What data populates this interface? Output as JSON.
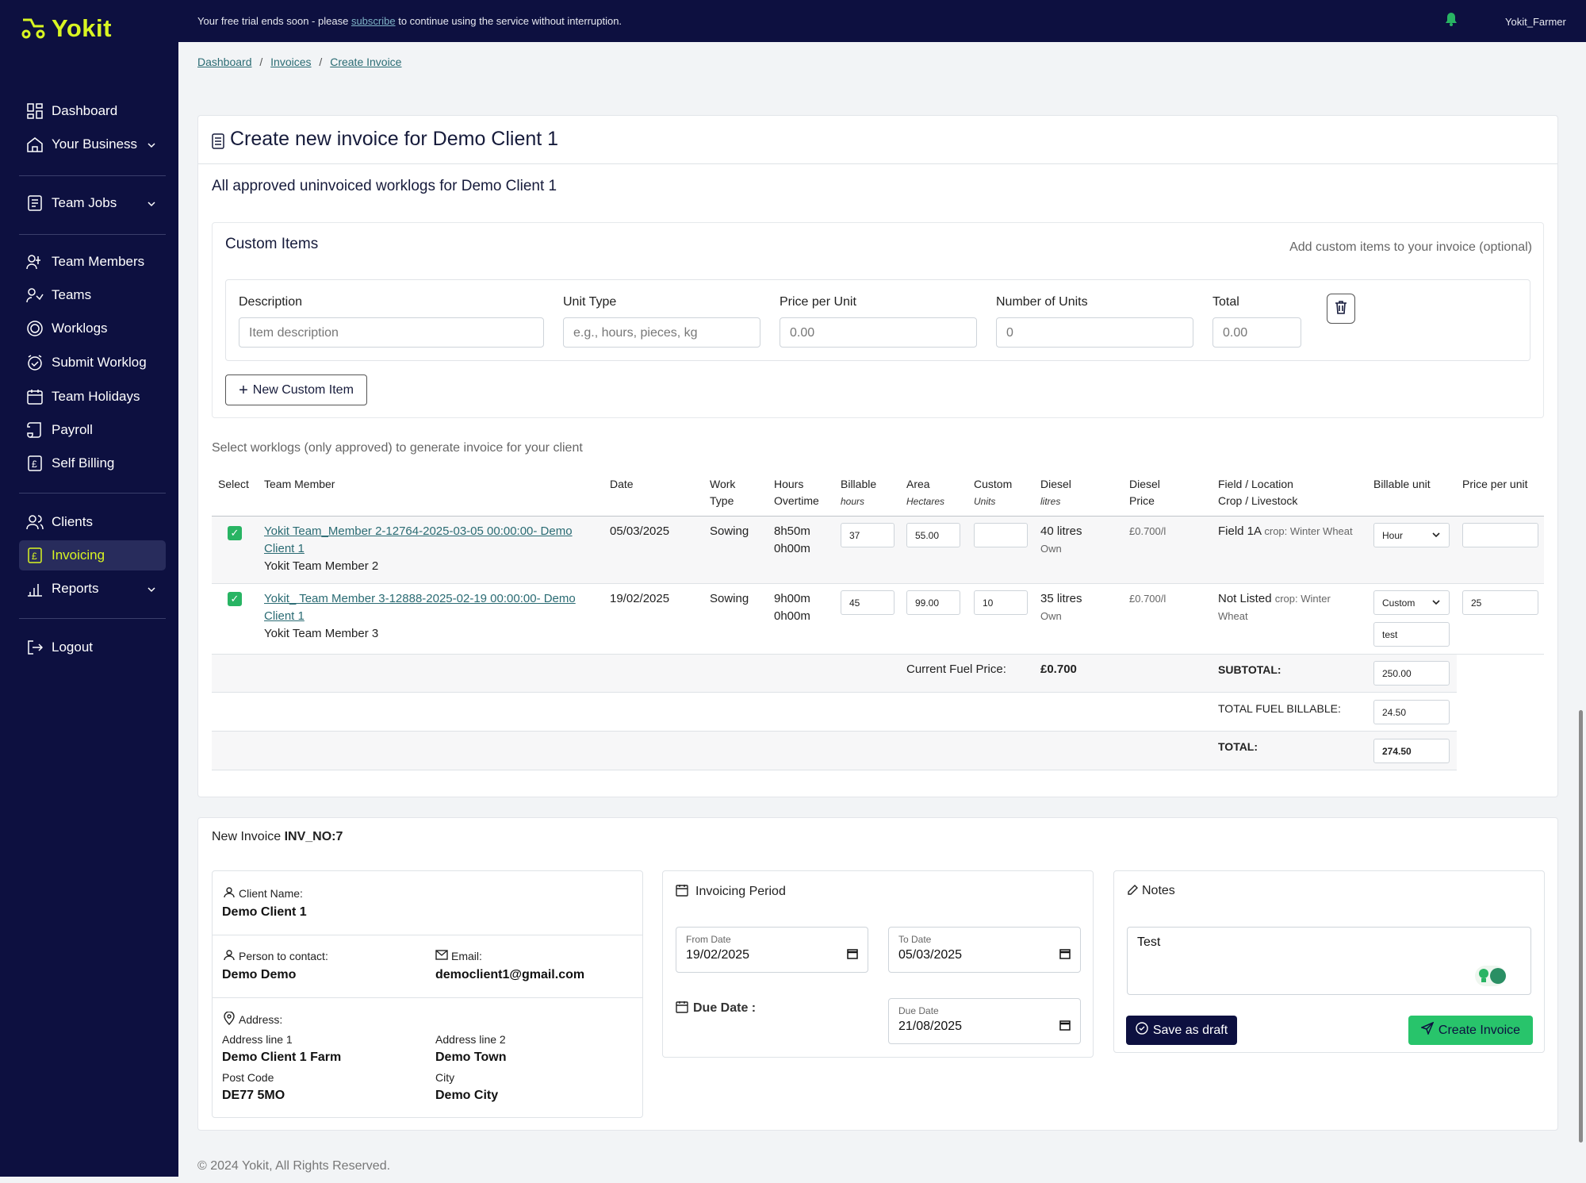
{
  "app": {
    "name": "Yokit"
  },
  "sidebar": {
    "items": [
      {
        "label": "Dashboard"
      },
      {
        "label": "Your Business"
      },
      {
        "label": "Team Jobs"
      },
      {
        "label": "Team Members"
      },
      {
        "label": "Teams"
      },
      {
        "label": "Worklogs"
      },
      {
        "label": "Submit Worklog"
      },
      {
        "label": "Team Holidays"
      },
      {
        "label": "Payroll"
      },
      {
        "label": "Self Billing"
      },
      {
        "label": "Clients"
      },
      {
        "label": "Invoicing"
      },
      {
        "label": "Reports"
      },
      {
        "label": "Logout"
      }
    ]
  },
  "topbar": {
    "trial_before": "Your free trial ends soon - please",
    "trial_link": "subscribe",
    "trial_after": "to continue using the service without interruption.",
    "user": "Yokit_Farmer"
  },
  "breadcrumb": {
    "dashboard": "Dashboard",
    "invoices": "Invoices",
    "create": "Create Invoice",
    "sep": "/"
  },
  "page": {
    "title": "Create new invoice for Demo Client 1",
    "subtitle": "All approved uninvoiced worklogs for Demo Client 1"
  },
  "custom_items": {
    "title": "Custom Items",
    "hint": "Add custom items to your invoice (optional)",
    "labels": {
      "description": "Description",
      "unit_type": "Unit Type",
      "price": "Price per Unit",
      "units": "Number of Units",
      "total": "Total"
    },
    "placeholders": {
      "description": "Item description",
      "unit_type": "e.g., hours, pieces, kg",
      "price": "0.00",
      "units": "0",
      "total": "0.00"
    },
    "new_button": "New Custom Item"
  },
  "worklogs": {
    "hint": "Select worklogs (only approved) to generate invoice for your client",
    "headers": {
      "select": "Select",
      "member": "Team Member",
      "date": "Date",
      "work1": "Work",
      "work2": "Type",
      "hours1": "Hours",
      "hours2": "Overtime",
      "billable1": "Billable",
      "billable2": "hours",
      "area1": "Area",
      "area2": "Hectares",
      "custom1": "Custom",
      "custom2": "Units",
      "diesel1": "Diesel",
      "diesel2": "litres",
      "dprice1": "Diesel",
      "dprice2": "Price",
      "field1": "Field / Location",
      "field2": "Crop / Livestock",
      "bunit": "Billable unit",
      "ppu": "Price per unit"
    },
    "rows": [
      {
        "link_a": "Yokit Team_Member 2-12764-2025-03-05 00:00:00- Demo",
        "link_b": "Client 1",
        "member": "Yokit Team Member 2",
        "date": "05/03/2025",
        "work_type": "Sowing",
        "hours": "8h50m",
        "overtime": "0h00m",
        "billable": "37",
        "area": "55.00",
        "custom": "",
        "diesel": "40 litres",
        "diesel_src": "Own",
        "diesel_price": "£0.700/l",
        "field": "Field 1A",
        "crop_a": "crop: Winter Wheat",
        "crop_b": "",
        "unit": "Hour",
        "unit_extra": "",
        "price": ""
      },
      {
        "link_a": "Yokit_ Team Member 3-12888-2025-02-19 00:00:00- Demo",
        "link_b": "Client 1",
        "member": "Yokit Team Member 3",
        "date": "19/02/2025",
        "work_type": "Sowing",
        "hours": "9h00m",
        "overtime": "0h00m",
        "billable": "45",
        "area": "99.00",
        "custom": "10",
        "diesel": "35 litres",
        "diesel_src": "Own",
        "diesel_price": "£0.700/l",
        "field": "Not Listed",
        "crop_a": "crop: Winter",
        "crop_b": "Wheat",
        "unit": "Custom",
        "unit_extra": "test",
        "price": "25"
      }
    ],
    "fuel_label": "Current Fuel Price:",
    "fuel_value": "£0.700",
    "subtotal_label": "SUBTOTAL:",
    "subtotal": "250.00",
    "fuel_billable_label": "TOTAL FUEL BILLABLE:",
    "fuel_billable": "24.50",
    "total_label": "TOTAL:",
    "total": "274.50"
  },
  "invoice": {
    "prefix": "New Invoice",
    "number": "INV_NO:7",
    "client_name_label": "Client Name:",
    "client_name": "Demo Client 1",
    "contact_label": "Person to contact:",
    "contact": "Demo Demo",
    "email_label": "Email:",
    "email": "democlient1@gmail.com",
    "address_label": "Address:",
    "addr1_label": "Address line 1",
    "addr1": "Demo Client 1 Farm",
    "addr2_label": "Address line 2",
    "addr2": "Demo Town",
    "postcode_label": "Post Code",
    "postcode": "DE77 5MO",
    "city_label": "City",
    "city": "Demo City",
    "period_title": "Invoicing Period",
    "from_label": "From Date",
    "from": "19/02/2025",
    "to_label": "To Date",
    "to": "05/03/2025",
    "due_title": "Due Date :",
    "due_label": "Due Date",
    "due": "21/08/2025",
    "notes_title": "Notes",
    "notes": "Test",
    "draft_button": "Save as draft",
    "create_button": "Create Invoice"
  },
  "footer": "© 2024 Yokit, All Rights Reserved.",
  "colors": {
    "sidebar": "#0d1040",
    "accent": "#d9f522",
    "green": "#28b463",
    "link": "#2a6b73"
  }
}
